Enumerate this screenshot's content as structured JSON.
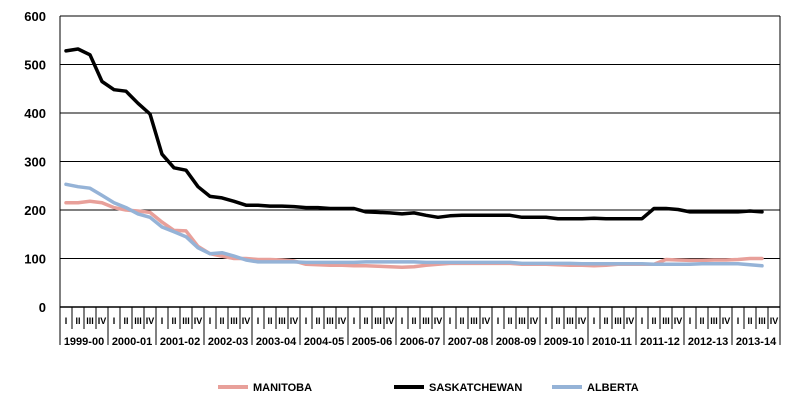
{
  "chart_data": {
    "type": "line",
    "title": "",
    "xlabel": "",
    "ylabel": "",
    "ylim": [
      0,
      600
    ],
    "yticks": [
      "0",
      "100",
      "200",
      "300",
      "400",
      "500",
      "600"
    ],
    "grid": "horizontal",
    "legend_position": "bottom",
    "fiscal_years": [
      "1999-00",
      "2000-01",
      "2001-02",
      "2002-03",
      "2003-04",
      "2004-05",
      "2005-06",
      "2006-07",
      "2007-08",
      "2008-09",
      "2009-10",
      "2010-11",
      "2011-12",
      "2012-13",
      "2013-14"
    ],
    "quarter_labels": [
      "I",
      "II",
      "III",
      "IV"
    ],
    "series": [
      {
        "name": "MANITOBA",
        "color": "#e8a09a",
        "values": [
          215,
          215,
          218,
          215,
          205,
          200,
          198,
          195,
          175,
          158,
          157,
          125,
          110,
          105,
          100,
          100,
          98,
          98,
          97,
          95,
          88,
          87,
          86,
          86,
          85,
          85,
          84,
          83,
          82,
          83,
          86,
          88,
          90,
          90,
          90,
          90,
          90,
          90,
          88,
          88,
          88,
          87,
          86,
          86,
          85,
          86,
          88,
          88,
          88,
          88,
          98,
          97,
          96,
          96,
          97,
          97,
          98,
          100,
          100
        ]
      },
      {
        "name": "SASKATCHEWAN",
        "color": "#000000",
        "values": [
          528,
          532,
          520,
          465,
          448,
          445,
          420,
          398,
          315,
          287,
          282,
          248,
          228,
          225,
          218,
          210,
          210,
          208,
          208,
          207,
          205,
          205,
          203,
          203,
          203,
          196,
          195,
          194,
          192,
          194,
          189,
          185,
          188,
          189,
          189,
          189,
          189,
          189,
          185,
          185,
          185,
          182,
          182,
          182,
          183,
          182,
          182,
          182,
          182,
          203,
          203,
          201,
          196,
          196,
          196,
          196,
          196,
          198,
          196
        ]
      },
      {
        "name": "ALBERTA",
        "color": "#95b3d7",
        "values": [
          253,
          248,
          245,
          230,
          215,
          205,
          192,
          185,
          165,
          155,
          145,
          122,
          110,
          112,
          105,
          97,
          93,
          93,
          93,
          93,
          92,
          92,
          92,
          92,
          92,
          93,
          93,
          93,
          93,
          93,
          92,
          92,
          92,
          92,
          92,
          92,
          92,
          92,
          90,
          90,
          90,
          90,
          90,
          89,
          89,
          89,
          89,
          89,
          89,
          88,
          88,
          88,
          88,
          89,
          89,
          89,
          89,
          87,
          85
        ]
      }
    ]
  }
}
